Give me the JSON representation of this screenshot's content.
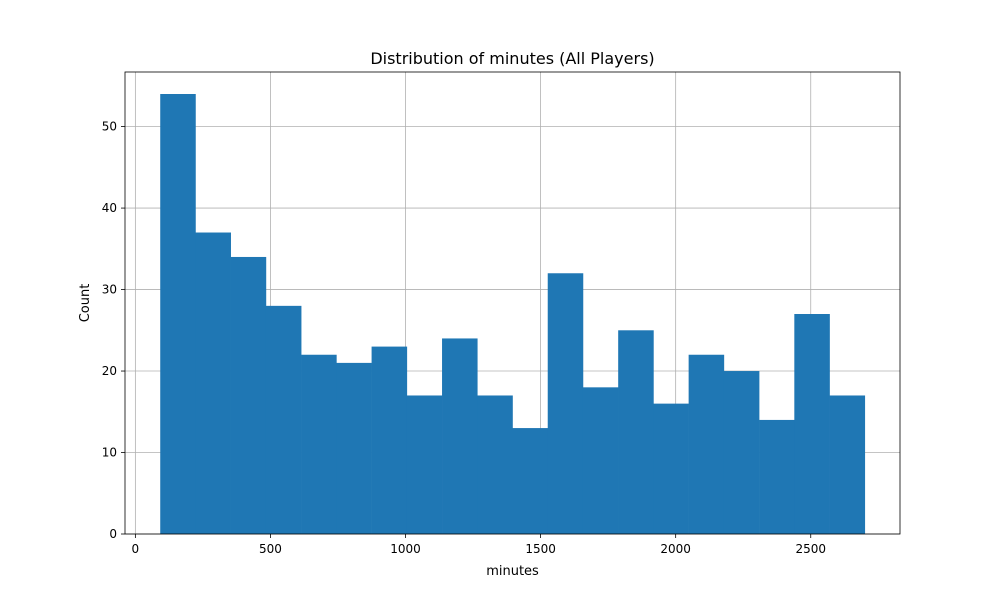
{
  "chart_data": {
    "type": "bar",
    "title": "Distribution of minutes (All Players)",
    "xlabel": "minutes",
    "ylabel": "Count",
    "bin_edges": [
      92,
      222.4,
      352.8,
      483.2,
      613.6,
      744,
      874.4,
      1004.8,
      1135.2,
      1265.6,
      1396,
      1526.4,
      1656.8,
      1787.2,
      1917.6,
      2048,
      2178.4,
      2308.8,
      2439.2,
      2569.6,
      2700
    ],
    "values": [
      54,
      37,
      34,
      28,
      22,
      21,
      23,
      17,
      24,
      17,
      13,
      32,
      18,
      25,
      16,
      22,
      20,
      14,
      27,
      17
    ],
    "xlim": [
      -38.4,
      2830.4
    ],
    "ylim": [
      0,
      56.7
    ],
    "xticks": [
      0,
      500,
      1000,
      1500,
      2000,
      2500
    ],
    "yticks": [
      0,
      10,
      20,
      30,
      40,
      50
    ],
    "grid": true,
    "bar_color": "#1f77b4"
  }
}
